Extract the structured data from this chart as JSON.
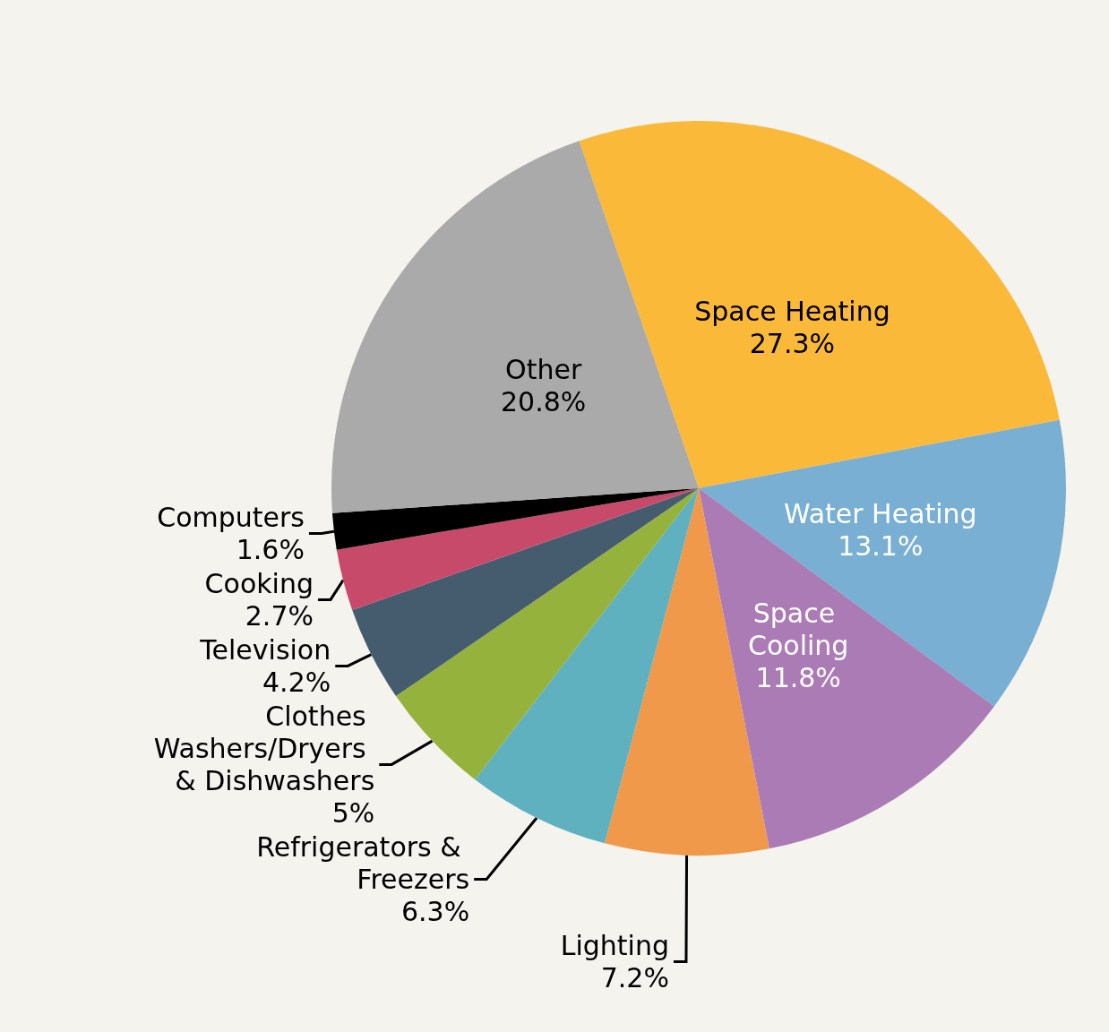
{
  "chart_data": {
    "type": "pie",
    "categories": [
      "Space Heating",
      "Water Heating",
      "Space Cooling",
      "Lighting",
      "Refrigerators & Freezers",
      "Clothes Washers/Dryers & Dishwashers",
      "Television",
      "Cooking",
      "Computers",
      "Other"
    ],
    "values": [
      27.3,
      13.1,
      11.8,
      7.2,
      6.3,
      5,
      4.2,
      2.7,
      1.6,
      20.8
    ],
    "value_labels": [
      "27.3%",
      "13.1%",
      "11.8%",
      "7.2%",
      "6.3%",
      "5%",
      "4.2%",
      "2.7%",
      "1.6%",
      "20.8%"
    ],
    "colors": [
      "#fbb93a",
      "#78afd3",
      "#ab7bb6",
      "#f0994b",
      "#5fb1c0",
      "#95b33c",
      "#455c6f",
      "#c84a6a",
      "#000000",
      "#aaaaaa"
    ],
    "legend": false
  }
}
